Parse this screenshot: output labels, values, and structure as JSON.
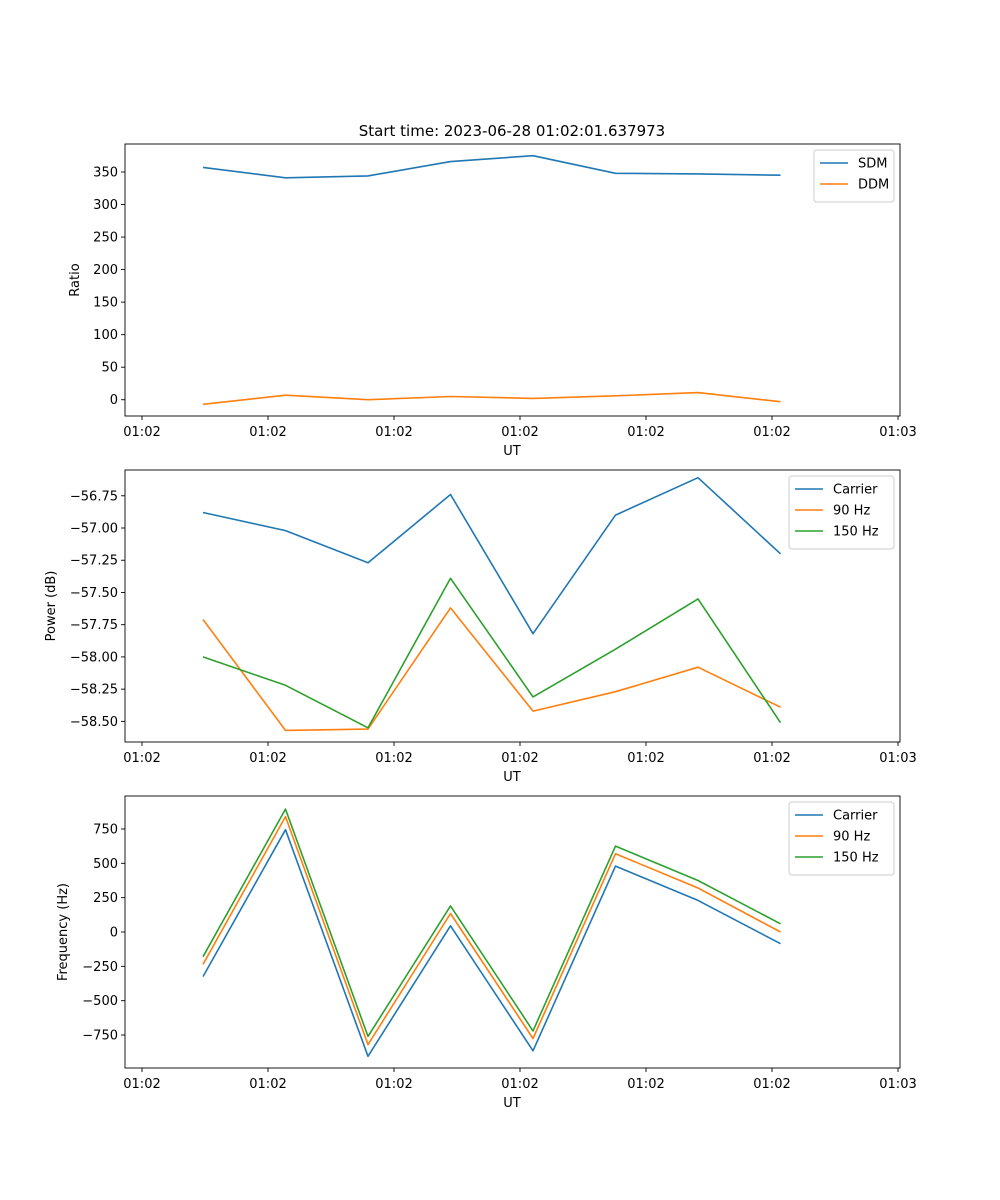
{
  "title": "Start time: 2023-06-28 01:02:01.637973",
  "colors": {
    "blue": "#1f77b4",
    "orange": "#ff7f0e",
    "green": "#2ca02c"
  },
  "chart_data": [
    {
      "type": "line",
      "title": "Start time: 2023-06-28 01:02:01.637973",
      "xlabel": "UT",
      "ylabel": "Ratio",
      "x_tick_labels": [
        "01:02",
        "01:02",
        "01:02",
        "01:02",
        "01:02",
        "01:02",
        "01:03"
      ],
      "y_ticks": [
        0,
        50,
        100,
        150,
        200,
        250,
        300,
        350
      ],
      "y_tick_labels": [
        "0",
        "50",
        "100",
        "150",
        "200",
        "250",
        "300",
        "350"
      ],
      "ylim": [
        -25,
        393
      ],
      "grid": false,
      "legend": "top-right",
      "series": [
        {
          "name": "SDM",
          "color": "#1f77b4",
          "values": [
            357,
            341,
            344,
            366,
            375,
            348,
            347,
            345
          ]
        },
        {
          "name": "DDM",
          "color": "#ff7f0e",
          "values": [
            -7,
            7,
            0,
            5,
            2,
            6,
            11,
            -3
          ]
        }
      ]
    },
    {
      "type": "line",
      "xlabel": "UT",
      "ylabel": "Power (dB)",
      "x_tick_labels": [
        "01:02",
        "01:02",
        "01:02",
        "01:02",
        "01:02",
        "01:02",
        "01:03"
      ],
      "y_ticks": [
        -58.5,
        -58.25,
        -58.0,
        -57.75,
        -57.5,
        -57.25,
        -57.0,
        -56.75
      ],
      "y_tick_labels": [
        "−58.50",
        "−58.25",
        "−58.00",
        "−57.75",
        "−57.50",
        "−57.25",
        "−57.00",
        "−56.75"
      ],
      "ylim": [
        -58.66,
        -56.55
      ],
      "grid": false,
      "legend": "top-right",
      "series": [
        {
          "name": "Carrier",
          "color": "#1f77b4",
          "values": [
            -56.88,
            -57.02,
            -57.27,
            -56.74,
            -57.82,
            -56.9,
            -56.61,
            -57.2
          ]
        },
        {
          "name": "90 Hz",
          "color": "#ff7f0e",
          "values": [
            -57.71,
            -58.57,
            -58.56,
            -57.62,
            -58.42,
            -58.27,
            -58.08,
            -58.39
          ]
        },
        {
          "name": "150 Hz",
          "color": "#2ca02c",
          "values": [
            -58.0,
            -58.22,
            -58.55,
            -57.39,
            -58.31,
            -57.94,
            -57.55,
            -58.51
          ]
        }
      ]
    },
    {
      "type": "line",
      "xlabel": "UT",
      "ylabel": "Frequency (Hz)",
      "x_tick_labels": [
        "01:02",
        "01:02",
        "01:02",
        "01:02",
        "01:02",
        "01:02",
        "01:03"
      ],
      "y_ticks": [
        -750,
        -500,
        -250,
        0,
        250,
        500,
        750
      ],
      "y_tick_labels": [
        "−750",
        "−500",
        "−250",
        "0",
        "250",
        "500",
        "750"
      ],
      "ylim": [
        -990,
        990
      ],
      "grid": false,
      "legend": "top-right",
      "series": [
        {
          "name": "Carrier",
          "color": "#1f77b4",
          "values": [
            -325,
            745,
            -905,
            45,
            -865,
            480,
            230,
            -85
          ]
        },
        {
          "name": "90 Hz",
          "color": "#ff7f0e",
          "values": [
            -235,
            840,
            -820,
            135,
            -775,
            570,
            320,
            0
          ]
        },
        {
          "name": "150 Hz",
          "color": "#2ca02c",
          "values": [
            -180,
            895,
            -760,
            190,
            -720,
            625,
            375,
            60
          ]
        }
      ]
    }
  ]
}
